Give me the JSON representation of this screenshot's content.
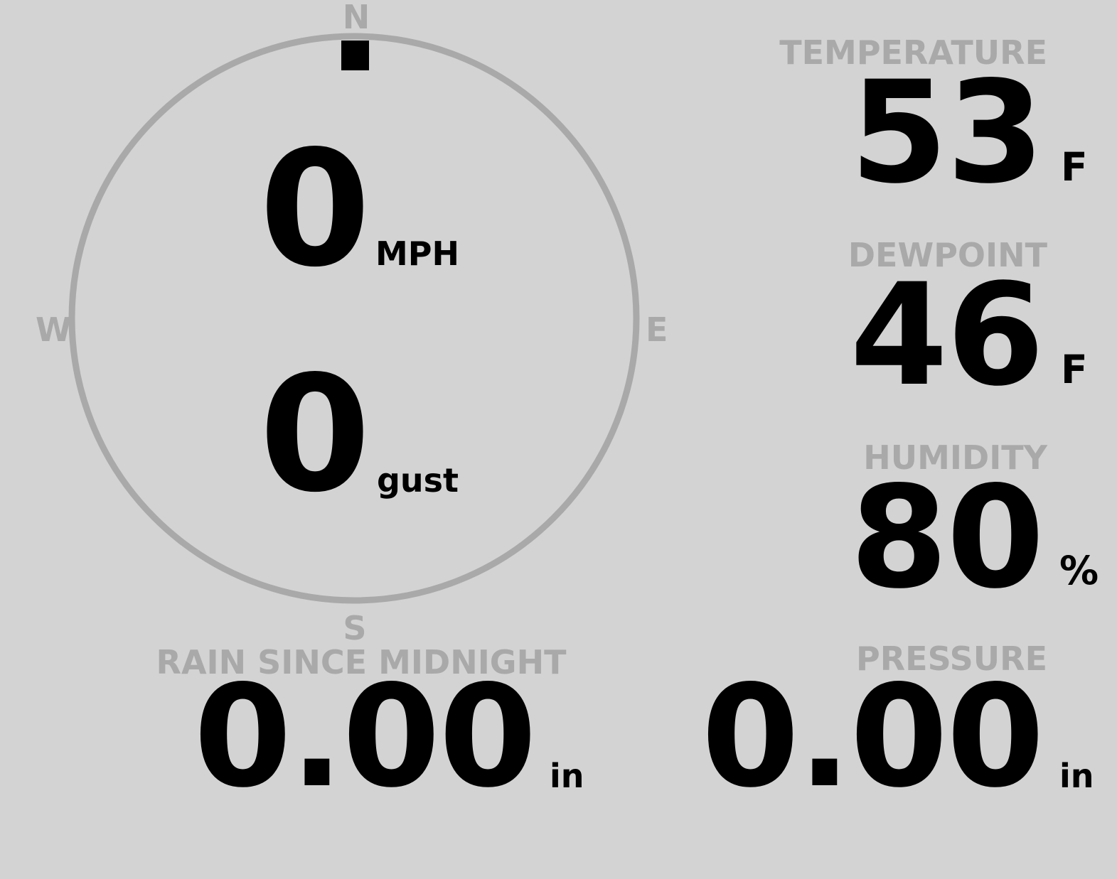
{
  "compass": {
    "north": "N",
    "south": "S",
    "east": "E",
    "west": "W",
    "direction_degrees": 0
  },
  "wind": {
    "speed": "0",
    "speed_unit": "MPH",
    "gust": "0",
    "gust_unit": "gust"
  },
  "temperature": {
    "label": "TEMPERATURE",
    "value": "53",
    "unit": "F"
  },
  "dewpoint": {
    "label": "DEWPOINT",
    "value": "46",
    "unit": "F"
  },
  "humidity": {
    "label": "HUMIDITY",
    "value": "80",
    "unit": "%"
  },
  "rain": {
    "label": "RAIN SINCE MIDNIGHT",
    "value": "0.00",
    "unit": "in"
  },
  "pressure": {
    "label": "PRESSURE",
    "value": "0.00",
    "unit": "in"
  },
  "colors": {
    "background": "#d3d3d3",
    "label": "#a9a9a9",
    "value": "#000000"
  }
}
